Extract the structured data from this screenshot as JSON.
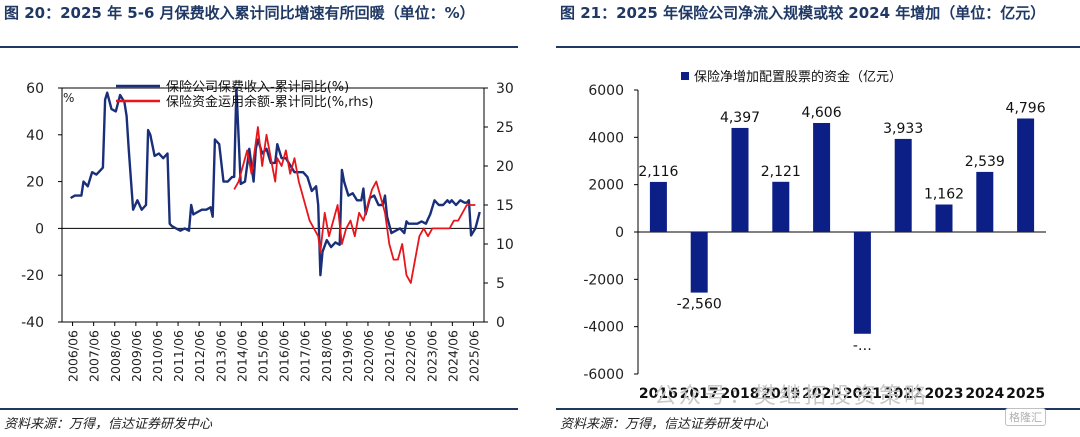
{
  "left": {
    "title": "图 20：2025 年 5-6 月保费收入累计同比增速有所回暖（单位：%）",
    "source": "资料来源：万得，信达证券研发中心",
    "chart_data": {
      "type": "line",
      "y_unit_label": "%",
      "ylim_left": [
        -40,
        60
      ],
      "yticks_left": [
        "60",
        "40",
        "20",
        "0",
        "-20",
        "-40"
      ],
      "ylim_right": [
        0,
        30
      ],
      "yticks_right": [
        "30",
        "25",
        "20",
        "15",
        "10",
        "5",
        "0"
      ],
      "x_ticks": [
        "2006/06",
        "2007/06",
        "2008/06",
        "2009/06",
        "2010/06",
        "2011/06",
        "2012/06",
        "2013/06",
        "2014/06",
        "2015/06",
        "2016/06",
        "2017/06",
        "2018/06",
        "2019/06",
        "2020/06",
        "2021/06",
        "2022/06",
        "2023/06",
        "2024/06",
        "2025/06"
      ],
      "series": [
        {
          "name": "保险公司保费收入-累计同比(%)",
          "axis": "left",
          "color": "#1a2f7a",
          "x": [
            2006.4,
            2006.6,
            2006.9,
            2007.0,
            2007.2,
            2007.4,
            2007.6,
            2007.8,
            2007.9,
            2008.0,
            2008.1,
            2008.3,
            2008.5,
            2008.7,
            2008.9,
            2009.0,
            2009.1,
            2009.3,
            2009.5,
            2009.7,
            2009.9,
            2010.0,
            2010.1,
            2010.3,
            2010.5,
            2010.7,
            2010.9,
            2011.0,
            2011.1,
            2011.3,
            2011.5,
            2011.7,
            2011.9,
            2012.0,
            2012.1,
            2012.3,
            2012.5,
            2012.7,
            2012.9,
            2013.0,
            2013.1,
            2013.3,
            2013.5,
            2013.7,
            2013.9,
            2014.0,
            2014.1,
            2014.3,
            2014.5,
            2014.7,
            2014.9,
            2015.0,
            2015.1,
            2015.3,
            2015.5,
            2015.7,
            2015.9,
            2016.0,
            2016.2,
            2016.4,
            2016.6,
            2016.8,
            2017.0,
            2017.2,
            2017.4,
            2017.6,
            2017.8,
            2017.9,
            2018.0,
            2018.1,
            2018.3,
            2018.5,
            2018.7,
            2018.9,
            2019.0,
            2019.1,
            2019.3,
            2019.5,
            2019.7,
            2019.9,
            2020.0,
            2020.1,
            2020.3,
            2020.5,
            2020.7,
            2020.9,
            2021.0,
            2021.1,
            2021.3,
            2021.5,
            2021.7,
            2021.9,
            2022.0,
            2022.1,
            2022.3,
            2022.5,
            2022.7,
            2022.9,
            2023.0,
            2023.1,
            2023.3,
            2023.5,
            2023.7,
            2023.9,
            2024.0,
            2024.1,
            2024.3,
            2024.5,
            2024.7,
            2024.8,
            2024.9,
            2025.0,
            2025.2,
            2025.4
          ],
          "values": [
            13,
            14,
            14,
            20,
            18,
            24,
            23,
            25,
            26,
            55,
            58,
            51,
            50,
            57,
            54,
            48,
            34,
            8,
            12,
            8,
            10,
            42,
            40,
            31,
            32,
            30,
            32,
            2,
            1,
            0,
            -1,
            0,
            -1,
            10,
            6,
            7,
            8,
            8,
            9,
            5,
            38,
            36,
            20,
            20,
            22,
            22,
            60,
            19,
            20,
            34,
            20,
            34,
            38,
            32,
            34,
            28,
            28,
            36,
            30,
            30,
            27,
            24,
            24,
            24,
            22,
            16,
            18,
            10,
            -20,
            -10,
            -5,
            -8,
            -6,
            -7,
            25,
            20,
            14,
            15,
            12,
            12,
            17,
            6,
            13,
            14,
            10,
            10,
            14,
            5,
            -2,
            -1,
            0,
            -2,
            3,
            2,
            2,
            2,
            3,
            2,
            4,
            6,
            12,
            10,
            10,
            12,
            11,
            12,
            10,
            12,
            11,
            11,
            12,
            -3,
            0,
            7
          ]
        },
        {
          "name": "保险资金运用余额-累计同比(%,rhs)",
          "axis": "right",
          "color": "#e8151b",
          "x": [
            2014.0,
            2014.2,
            2014.4,
            2014.6,
            2014.8,
            2015.0,
            2015.1,
            2015.3,
            2015.5,
            2015.7,
            2015.9,
            2016.0,
            2016.2,
            2016.4,
            2016.6,
            2016.8,
            2017.0,
            2017.1,
            2017.3,
            2017.5,
            2017.7,
            2017.9,
            2018.0,
            2018.2,
            2018.4,
            2018.6,
            2018.8,
            2019.0,
            2019.2,
            2019.4,
            2019.6,
            2019.8,
            2020.0,
            2020.2,
            2020.4,
            2020.6,
            2020.8,
            2021.0,
            2021.2,
            2021.4,
            2021.6,
            2021.8,
            2022.0,
            2022.2,
            2022.4,
            2022.6,
            2022.8,
            2023.0,
            2023.2,
            2023.4,
            2023.6,
            2023.8,
            2024.0,
            2024.2,
            2024.4,
            2024.6,
            2024.8,
            2025.0,
            2025.2
          ],
          "values": [
            17,
            18,
            20,
            22,
            19,
            23,
            25,
            20,
            24,
            21,
            18,
            21,
            20,
            22,
            19,
            21,
            18,
            17,
            15,
            13,
            12,
            11,
            9,
            14,
            11,
            13,
            15,
            10,
            12,
            13,
            11,
            14,
            13,
            15,
            17,
            18,
            16,
            14,
            10,
            8,
            8,
            10,
            6,
            5,
            8,
            11,
            12,
            11,
            12,
            12,
            12,
            12,
            12,
            13,
            13,
            14,
            15,
            15,
            15
          ]
        }
      ]
    }
  },
  "right": {
    "title": "图 21：2025 年保险公司净流入规模或较 2024 年增加（单位：亿元）",
    "source": "资料来源：万得，信达证券研发中心",
    "chart_data": {
      "type": "bar",
      "legend": "保险净增加配置股票的资金（亿元）",
      "color": "#0c1f86",
      "categories": [
        "2016",
        "2017",
        "2018",
        "2019",
        "2020",
        "2021",
        "2022",
        "2023",
        "2024",
        "2025"
      ],
      "values": [
        2116,
        -2560,
        4397,
        2121,
        4606,
        -4300,
        3933,
        1162,
        2539,
        4796
      ],
      "labels": [
        "2,116",
        "-2,560",
        "4,397",
        "2,121",
        "4,606",
        "-…",
        "3,933",
        "1,162",
        "2,539",
        "4,796"
      ],
      "ylim": [
        -6000,
        6000
      ],
      "yticks": [
        "6000",
        "4000",
        "2000",
        "0",
        "-2000",
        "-4000",
        "-6000"
      ]
    }
  },
  "watermark": "公众号：樊继拓投资策略",
  "watermark_logo": "格隆汇"
}
